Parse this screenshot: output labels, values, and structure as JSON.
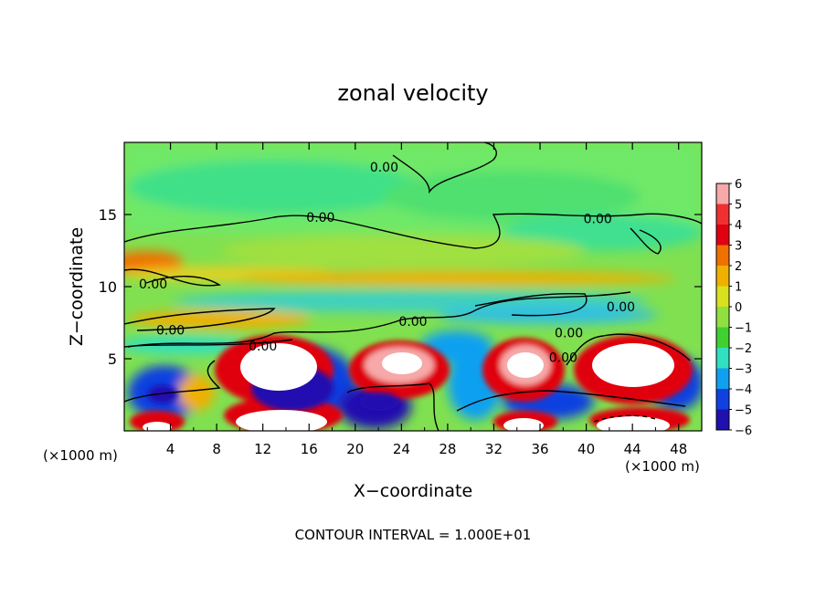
{
  "chart_data": {
    "type": "heatmap",
    "title": "zonal velocity",
    "xlabel": "X−coordinate",
    "ylabel": "Z−coordinate",
    "x_units_left": "(×1000 m)",
    "x_units_right": "(×1000 m)",
    "footer": "CONTOUR INTERVAL = 1.000E+01",
    "xlim": [
      0,
      50
    ],
    "ylim": [
      0,
      20
    ],
    "x_ticks": [
      4,
      8,
      12,
      16,
      20,
      24,
      28,
      32,
      36,
      40,
      44,
      48
    ],
    "y_ticks": [
      5,
      10,
      15
    ],
    "colorbar": {
      "levels": [
        6,
        5,
        4,
        3,
        2,
        1,
        0,
        -1,
        -2,
        -3,
        -4,
        -5,
        -6
      ],
      "colors": [
        "#f7a8a8",
        "#f03030",
        "#e00010",
        "#f07000",
        "#f0b000",
        "#d8e020",
        "#90e040",
        "#40d030",
        "#30e0c0",
        "#10a0f0",
        "#1040e0",
        "#2010b0",
        "#600080"
      ]
    },
    "contour_labels": [
      {
        "text": "0.00",
        "x": 22.5,
        "z": 18.3
      },
      {
        "text": "0.00",
        "x": 17.0,
        "z": 14.8
      },
      {
        "text": "0.00",
        "x": 41.0,
        "z": 14.7
      },
      {
        "text": "0.00",
        "x": 2.5,
        "z": 10.2
      },
      {
        "text": "0.00",
        "x": 43.0,
        "z": 8.6
      },
      {
        "text": "0.00",
        "x": 4.0,
        "z": 7.0
      },
      {
        "text": "0.00",
        "x": 25.0,
        "z": 7.6
      },
      {
        "text": "0.00",
        "x": 38.5,
        "z": 6.8
      },
      {
        "text": "0.00",
        "x": 12.0,
        "z": 5.9
      },
      {
        "text": "0.00",
        "x": 38.0,
        "z": 5.1
      }
    ],
    "features": [
      {
        "sign": "positive",
        "x": 13.0,
        "z": 4.5,
        "peak": 6
      },
      {
        "sign": "positive",
        "x": 24.0,
        "z": 4.5,
        "peak": 6
      },
      {
        "sign": "positive",
        "x": 33.5,
        "z": 4.5,
        "peak": 6
      },
      {
        "sign": "positive",
        "x": 43.5,
        "z": 4.5,
        "peak": 6
      },
      {
        "sign": "positive",
        "x": 14.0,
        "z": 1.1,
        "peak": 6
      },
      {
        "sign": "positive",
        "x": 3.0,
        "z": 0.5,
        "peak": 6
      },
      {
        "sign": "positive",
        "x": 33.5,
        "z": 0.6,
        "peak": 6
      },
      {
        "sign": "positive",
        "x": 44.5,
        "z": 0.6,
        "peak": 6
      },
      {
        "sign": "negative",
        "x": 14.5,
        "z": 3.2,
        "peak": -6
      },
      {
        "sign": "negative",
        "x": 2.8,
        "z": 2.5,
        "peak": -5
      },
      {
        "sign": "negative",
        "x": 22.0,
        "z": 1.9,
        "peak": -5
      },
      {
        "sign": "negative",
        "x": 36.5,
        "z": 2.0,
        "peak": -4
      },
      {
        "sign": "positive",
        "x": 1.5,
        "z": 11.8,
        "peak": 3
      }
    ]
  }
}
